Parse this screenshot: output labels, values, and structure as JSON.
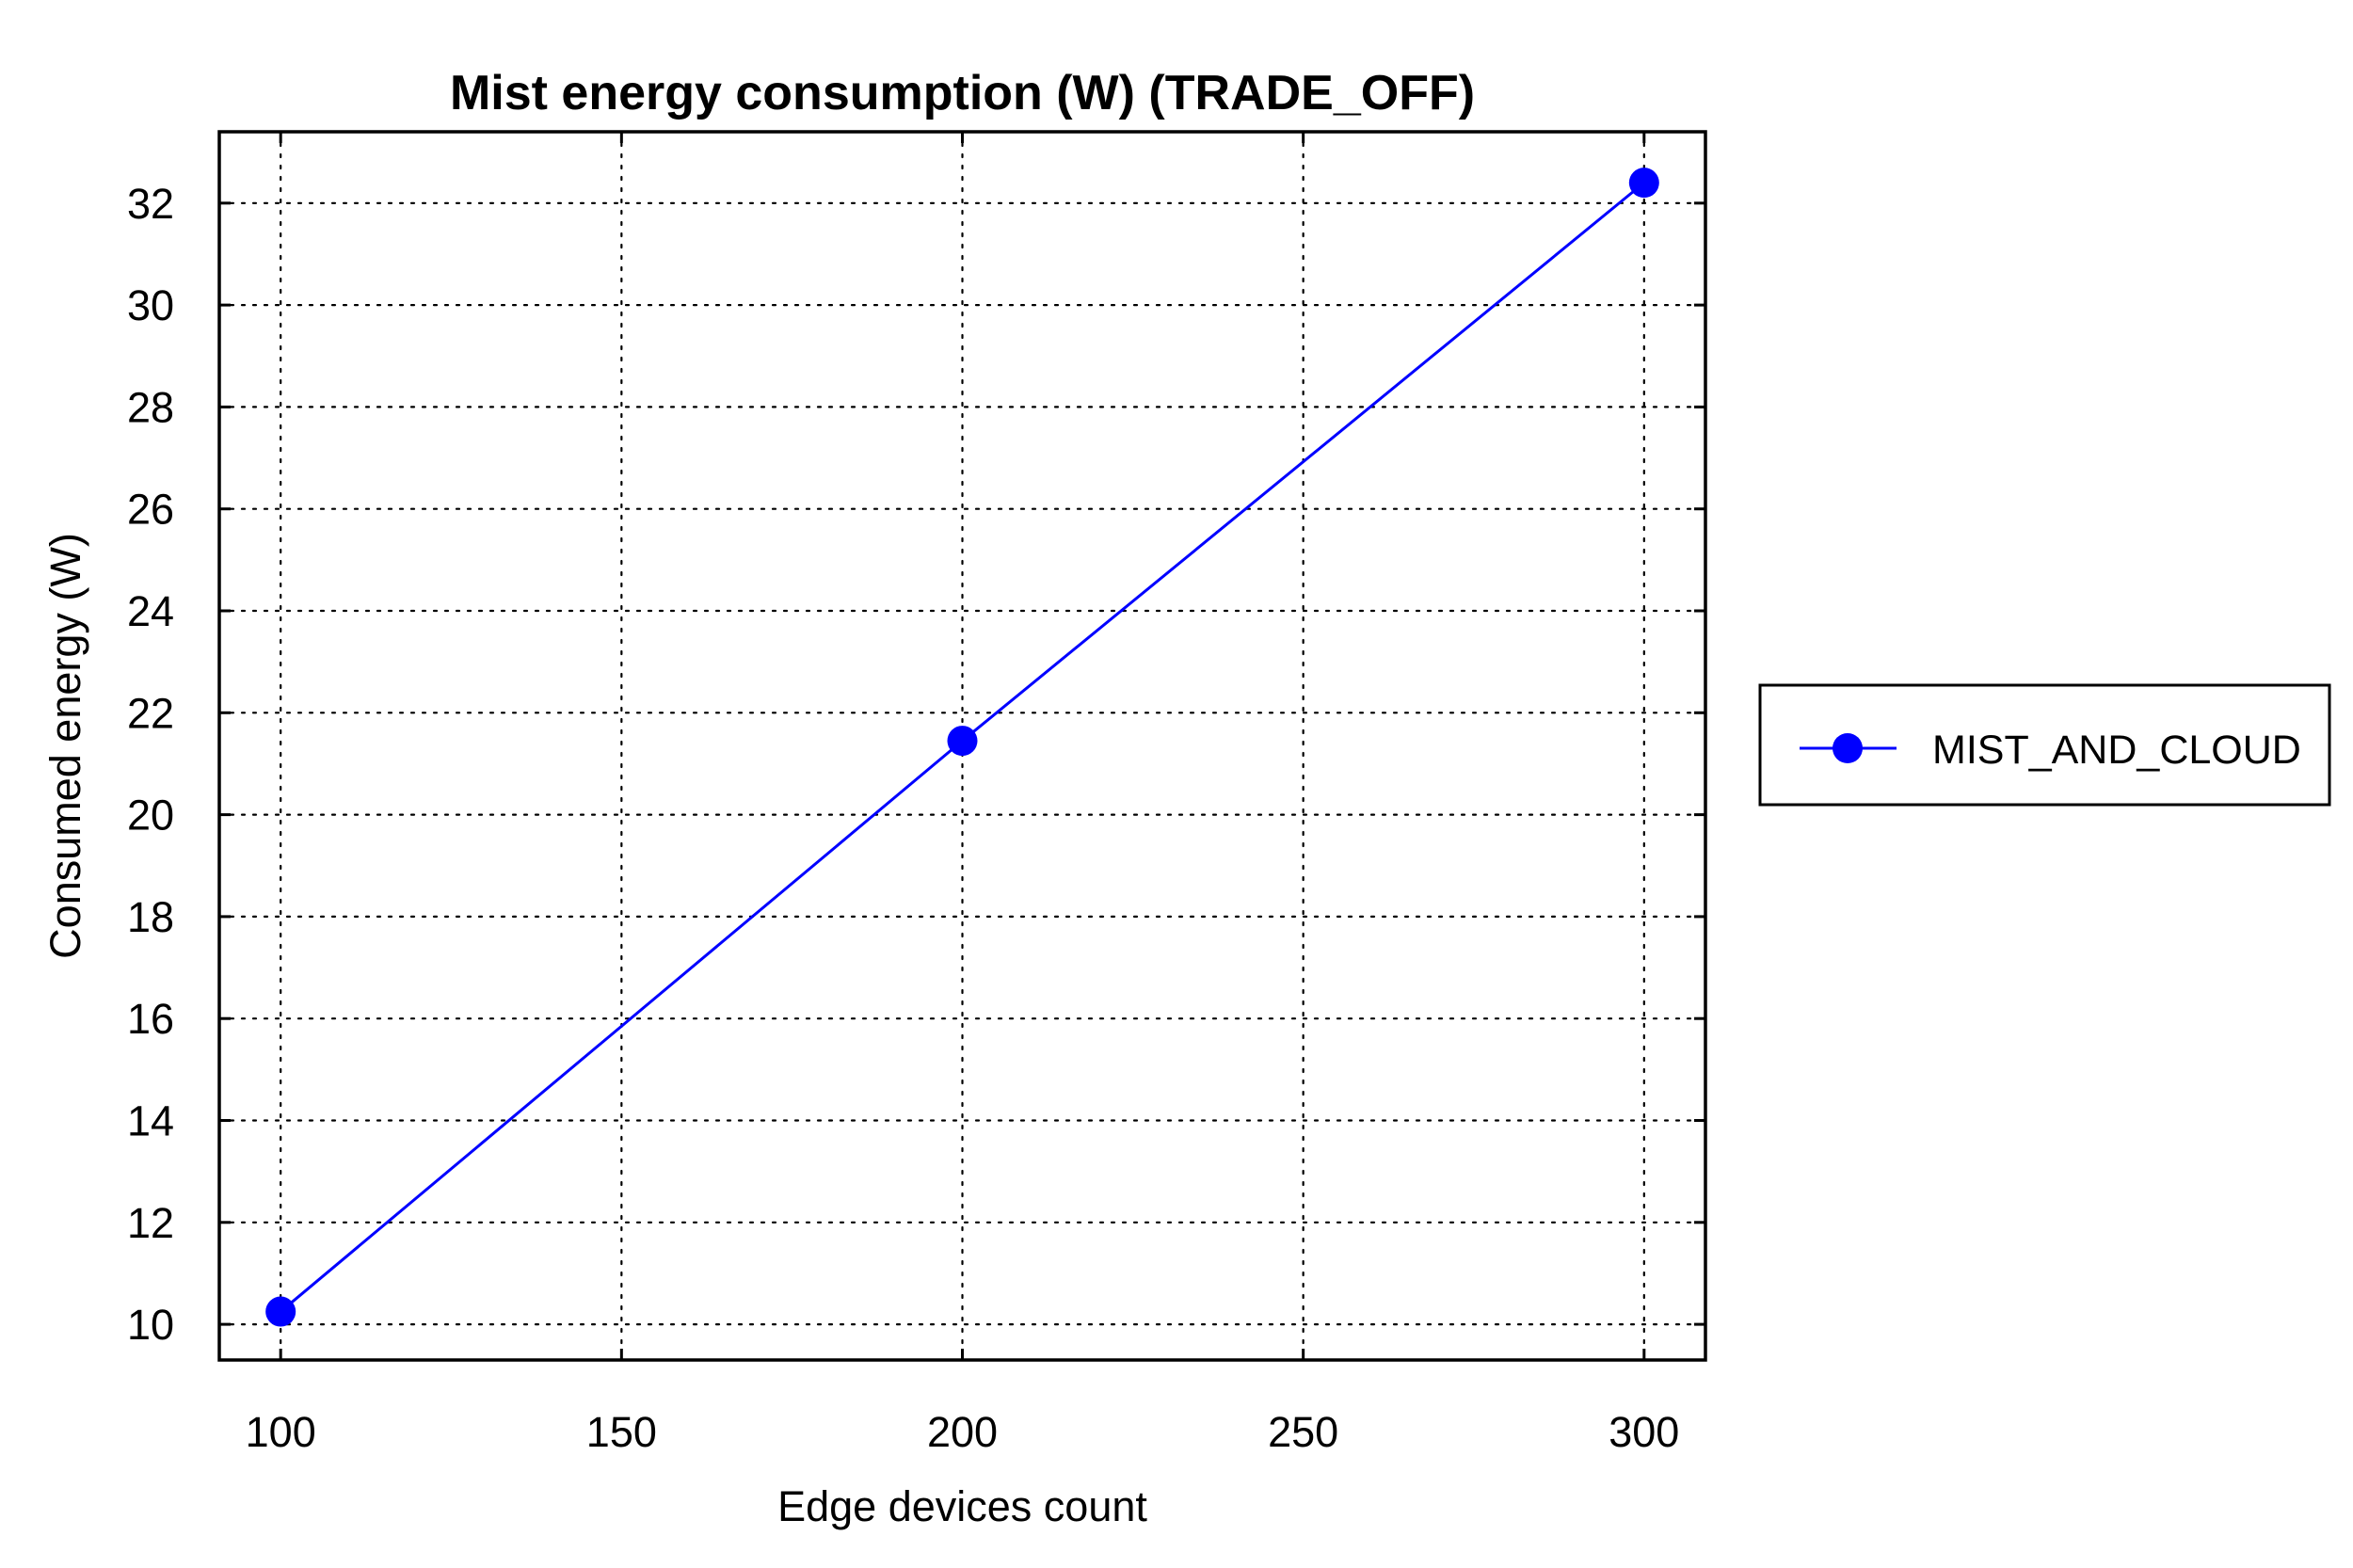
{
  "chart_data": {
    "type": "line",
    "title": "Mist energy consumption (W) (TRADE_OFF)",
    "xlabel": "Edge devices count",
    "ylabel": "Consumed energy (W)",
    "xlim": [
      91,
      309
    ],
    "ylim": [
      9.3,
      33.4
    ],
    "xticks": [
      100,
      150,
      200,
      250,
      300
    ],
    "yticks": [
      10,
      12,
      14,
      16,
      18,
      20,
      22,
      24,
      26,
      28,
      30,
      32
    ],
    "grid": true,
    "legend_position": "right",
    "series": [
      {
        "name": "MIST_AND_CLOUD",
        "color": "#0000ff",
        "marker": "circle",
        "x": [
          100,
          200,
          300
        ],
        "y": [
          10.25,
          21.45,
          32.4
        ]
      }
    ]
  }
}
